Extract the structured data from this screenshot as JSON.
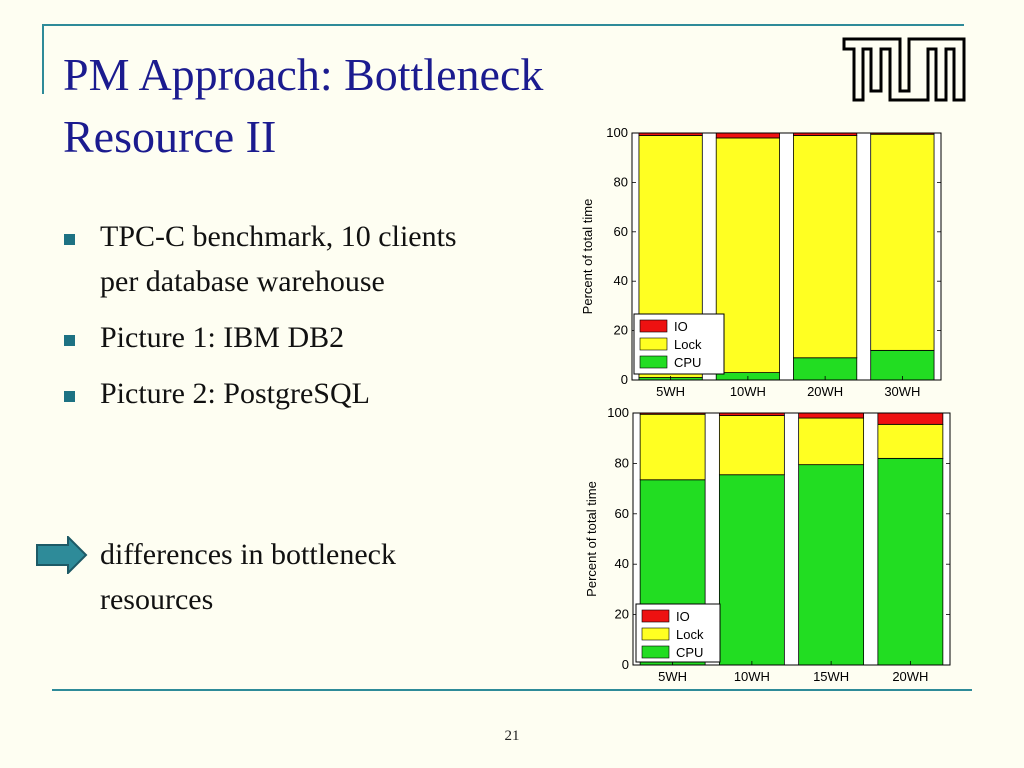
{
  "slide": {
    "title": "PM Approach: Bottleneck Resource II",
    "bullets": [
      "TPC-C benchmark, 10 clients per database warehouse",
      "Picture 1: IBM DB2",
      "Picture 2: PostgreSQL"
    ],
    "conclusion": "differences in bottleneck resources",
    "page_number": "21",
    "logo": "tum-logo",
    "icons": [
      "square-bullet-icon",
      "right-arrow-icon"
    ],
    "colors": {
      "title": "#1b1b8f",
      "accent": "#2e8b99",
      "bullet": "#1d7283",
      "arrow": "#2e8b99",
      "background": "#fefef2"
    }
  },
  "chart_data": [
    {
      "type": "bar",
      "stacked": true,
      "categories": [
        "5WH",
        "10WH",
        "20WH",
        "30WH"
      ],
      "series": [
        {
          "name": "CPU",
          "color": "#22dd22",
          "values": [
            1,
            3,
            9,
            12
          ]
        },
        {
          "name": "Lock",
          "color": "#ffff22",
          "values": [
            98,
            95,
            90,
            87.5
          ]
        },
        {
          "name": "IO",
          "color": "#ee1111",
          "values": [
            1,
            2,
            1,
            0.5
          ]
        }
      ],
      "xlabel": "",
      "ylabel": "Percent of total time",
      "ylim": [
        0,
        100
      ],
      "yticks": [
        0,
        20,
        40,
        60,
        80,
        100
      ],
      "legend": "bottom-left",
      "grid": false
    },
    {
      "type": "bar",
      "stacked": true,
      "categories": [
        "5WH",
        "10WH",
        "15WH",
        "20WH"
      ],
      "series": [
        {
          "name": "CPU",
          "color": "#22dd22",
          "values": [
            73.5,
            75.5,
            79.5,
            82
          ]
        },
        {
          "name": "Lock",
          "color": "#ffff22",
          "values": [
            26,
            23.5,
            18.5,
            13.5
          ]
        },
        {
          "name": "IO",
          "color": "#ee1111",
          "values": [
            0.5,
            1,
            2,
            4.5
          ]
        }
      ],
      "xlabel": "",
      "ylabel": "Percent of total time",
      "ylim": [
        0,
        100
      ],
      "yticks": [
        0,
        20,
        40,
        60,
        80,
        100
      ],
      "legend": "bottom-left",
      "grid": false
    }
  ]
}
